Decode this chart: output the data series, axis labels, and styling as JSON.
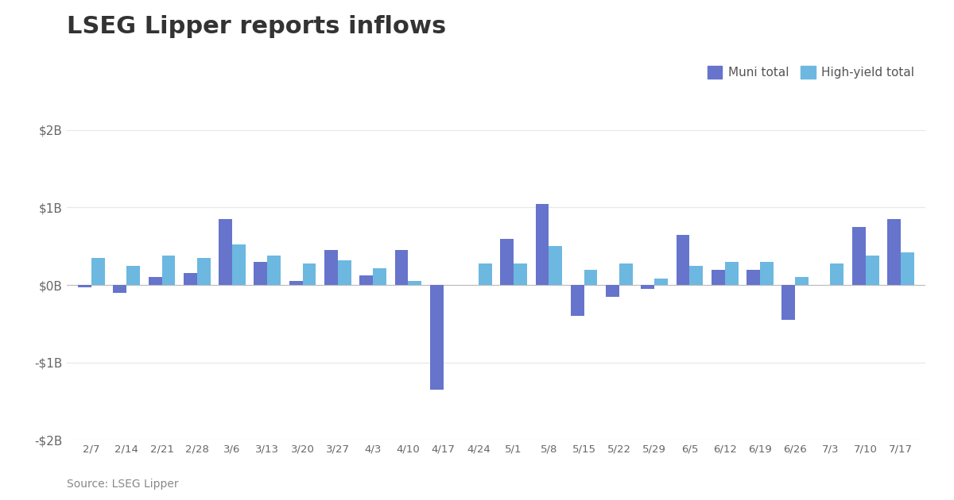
{
  "title": "LSEG Lipper reports inflows",
  "source": "Source: LSEG Lipper",
  "categories": [
    "2/7",
    "2/14",
    "2/21",
    "2/28",
    "3/6",
    "3/13",
    "3/20",
    "3/27",
    "4/3",
    "4/10",
    "4/17",
    "4/24",
    "5/1",
    "5/8",
    "5/15",
    "5/22",
    "5/29",
    "6/5",
    "6/12",
    "6/19",
    "6/26",
    "7/3",
    "7/10",
    "7/17"
  ],
  "muni_values": [
    -0.03,
    -0.1,
    0.1,
    0.15,
    0.85,
    0.3,
    0.05,
    0.45,
    0.12,
    0.45,
    -1.35,
    0.0,
    0.6,
    1.05,
    -0.4,
    -0.15,
    -0.05,
    0.65,
    0.2,
    0.2,
    -0.45,
    0.0,
    0.75,
    0.85
  ],
  "hy_values": [
    0.35,
    0.25,
    0.38,
    0.35,
    0.52,
    0.38,
    0.28,
    0.32,
    0.22,
    0.05,
    0.0,
    0.28,
    0.28,
    0.5,
    0.2,
    0.28,
    0.08,
    0.25,
    0.3,
    0.3,
    0.1,
    0.28,
    0.38,
    0.42
  ],
  "muni_color": "#6674cc",
  "hy_color": "#6cb8e0",
  "ylim": [
    -2.0,
    2.0
  ],
  "yticks": [
    -2.0,
    -1.0,
    0.0,
    1.0,
    2.0
  ],
  "ytick_labels": [
    "-$2B",
    "-$1B",
    "$0B",
    "$1B",
    "$2B"
  ],
  "background_color": "#ffffff",
  "title_fontsize": 22,
  "axis_fontsize": 11,
  "legend_fontsize": 11,
  "source_fontsize": 10,
  "grid_color": "#e8e8e8"
}
